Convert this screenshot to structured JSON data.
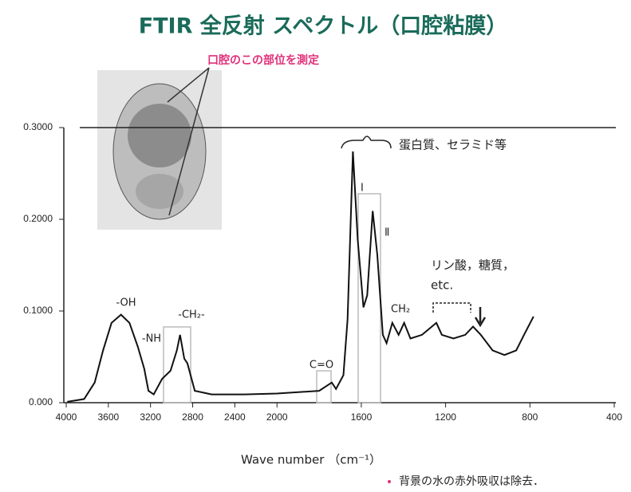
{
  "chart_data": {
    "type": "line",
    "title": "FTIR 全反射 スペクトル（口腔粘膜）",
    "subtitle": "口腔のこの部位を測定",
    "xlabel": "Wave number （cm⁻¹）",
    "note": "背景の水の赤外吸収は除去．",
    "annotations": [
      "-OH",
      "-NH",
      "-CH₂-",
      "C=O",
      "Ⅰ",
      "Ⅱ",
      "CH₂",
      "蛋白質、セラミド等",
      "リン酸，糖質，",
      "etc."
    ],
    "xlim": [
      4000,
      400
    ],
    "x_scale_break": 2000,
    "x_scale_ratio": 2,
    "xticks": [
      4000,
      3600,
      3200,
      2800,
      2400,
      2000,
      1600,
      1200,
      800,
      400
    ],
    "ylim": [
      0,
      0.3
    ],
    "yticks": [
      {
        "value": 0,
        "label": "0.000"
      },
      {
        "value": 0.1,
        "label": "0.1000"
      },
      {
        "value": 0.2,
        "label": "0.2000"
      },
      {
        "value": 0.3,
        "label": "0.3000"
      }
    ],
    "color": "#111111",
    "x": [
      3990,
      3830,
      3730,
      3650,
      3570,
      3480,
      3400,
      3320,
      3260,
      3220,
      3170,
      3090,
      3010,
      2950,
      2920,
      2880,
      2850,
      2780,
      2620,
      2310,
      2000,
      1800,
      1740,
      1720,
      1685,
      1665,
      1640,
      1617,
      1590,
      1572,
      1546,
      1524,
      1498,
      1480,
      1453,
      1423,
      1397,
      1367,
      1312,
      1244,
      1218,
      1163,
      1107,
      1070,
      1033,
      977,
      921,
      865,
      828,
      783
    ],
    "values": [
      0.001,
      0.004,
      0.022,
      0.057,
      0.087,
      0.096,
      0.087,
      0.061,
      0.037,
      0.013,
      0.009,
      0.026,
      0.035,
      0.057,
      0.074,
      0.048,
      0.043,
      0.013,
      0.009,
      0.009,
      0.01,
      0.013,
      0.022,
      0.015,
      0.03,
      0.091,
      0.274,
      0.178,
      0.104,
      0.117,
      0.209,
      0.161,
      0.074,
      0.065,
      0.087,
      0.074,
      0.087,
      0.07,
      0.074,
      0.087,
      0.074,
      0.07,
      0.074,
      0.083,
      0.074,
      0.057,
      0.052,
      0.057,
      0.074,
      0.094
    ]
  }
}
